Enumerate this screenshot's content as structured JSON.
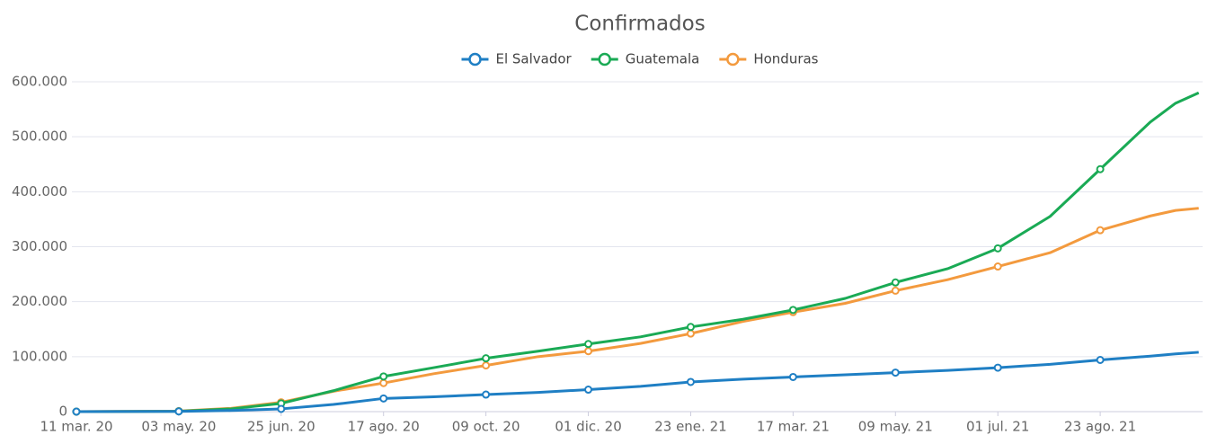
{
  "chart_data": {
    "type": "line",
    "title": "Confirmados",
    "x": [
      "2020-03-11",
      "2020-05-03",
      "2020-05-30",
      "2020-06-25",
      "2020-07-22",
      "2020-08-17",
      "2020-09-12",
      "2020-10-09",
      "2020-11-05",
      "2020-12-01",
      "2020-12-28",
      "2021-01-23",
      "2021-02-19",
      "2021-03-17",
      "2021-04-13",
      "2021-05-09",
      "2021-06-05",
      "2021-07-01",
      "2021-07-28",
      "2021-08-23",
      "2021-09-18",
      "2021-10-01",
      "2021-10-13"
    ],
    "series": [
      {
        "name": "El Salvador",
        "color": "#1f7fc4",
        "values": [
          0,
          400,
          2000,
          5000,
          13000,
          24000,
          27000,
          31000,
          35000,
          40000,
          46000,
          54000,
          59000,
          63000,
          67000,
          71000,
          75000,
          80000,
          86000,
          94000,
          101000,
          105000,
          108000
        ]
      },
      {
        "name": "Guatemala",
        "color": "#1aaa55",
        "values": [
          0,
          700,
          5000,
          15000,
          38000,
          64000,
          80000,
          97000,
          110000,
          123000,
          136000,
          154000,
          168000,
          185000,
          206000,
          235000,
          260000,
          297000,
          355000,
          441000,
          527000,
          561000,
          580000
        ]
      },
      {
        "name": "Honduras",
        "color": "#f39a3e",
        "values": [
          0,
          1000,
          6000,
          17000,
          37000,
          52000,
          69000,
          84000,
          100000,
          110000,
          124000,
          142000,
          164000,
          181000,
          197000,
          220000,
          240000,
          264000,
          289000,
          330000,
          356000,
          366000,
          370000
        ]
      }
    ],
    "xlim": [
      "2020-03-11",
      "2021-10-15"
    ],
    "xticks": [
      {
        "value": "2020-03-11",
        "label": "11 mar. 20"
      },
      {
        "value": "2020-05-03",
        "label": "03 may. 20"
      },
      {
        "value": "2020-06-25",
        "label": "25 jun. 20"
      },
      {
        "value": "2020-08-17",
        "label": "17 ago. 20"
      },
      {
        "value": "2020-10-09",
        "label": "09 oct. 20"
      },
      {
        "value": "2020-12-01",
        "label": "01 dic. 20"
      },
      {
        "value": "2021-01-23",
        "label": "23 ene. 21"
      },
      {
        "value": "2021-03-17",
        "label": "17 mar. 21"
      },
      {
        "value": "2021-05-09",
        "label": "09 may. 21"
      },
      {
        "value": "2021-07-01",
        "label": "01 jul. 21"
      },
      {
        "value": "2021-08-23",
        "label": "23 ago. 21"
      }
    ],
    "ylim": [
      0,
      600000
    ],
    "yticks": [
      0,
      {
        "value": 100000,
        "label": "100.000"
      },
      {
        "value": 200000,
        "label": "200.000"
      },
      {
        "value": 300000,
        "label": "300.000"
      },
      {
        "value": 400000,
        "label": "400.000"
      },
      {
        "value": 500000,
        "label": "500.000"
      },
      {
        "value": 600000,
        "label": "600.000"
      }
    ],
    "grid": true
  }
}
